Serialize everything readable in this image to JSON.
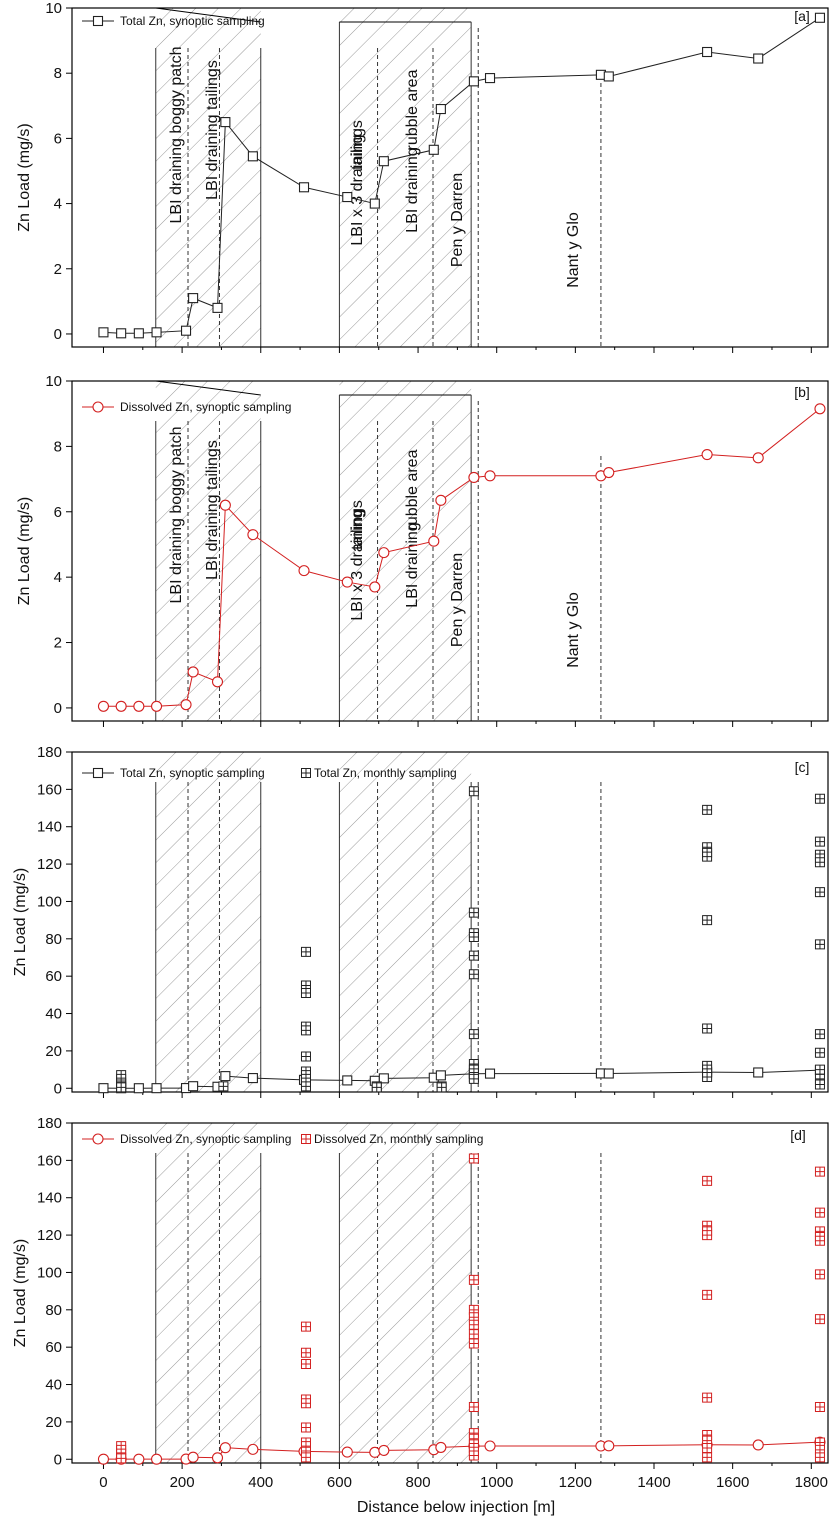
{
  "colors": {
    "total": "#222222",
    "dissolved": "#d32020",
    "hatch": "#9a9a9a",
    "axis": "#000000"
  },
  "xlabel": "Distance below injection [m]",
  "ylabel": "Zn Load (mg/s)",
  "xlim": [
    -80,
    1845
  ],
  "xticks": [
    0,
    200,
    400,
    600,
    800,
    1000,
    1200,
    1400,
    1600,
    1800
  ],
  "xtick_labels": [
    "0",
    "200",
    "400",
    "600",
    "800",
    "1000",
    "1200",
    "1400",
    "1600",
    "1800"
  ],
  "hatched_regions": [
    [
      133,
      400
    ],
    [
      600,
      935
    ]
  ],
  "solid_lines": [
    133,
    400,
    600,
    935
  ],
  "dashed_lines": [
    215,
    295,
    697,
    838,
    953,
    1265
  ],
  "region_labels": [
    "LBI draining boggy patch",
    "LBI draining tailings",
    "LBI x 3 draining",
    "tailings",
    "LBI draining",
    "rubble area",
    "Pen y Darren",
    "Nant y Glo"
  ],
  "chart_data": [
    {
      "type": "line",
      "panel": "[a]",
      "ylim": [
        -0.4,
        10
      ],
      "yticks": [
        0,
        2,
        4,
        6,
        8,
        10
      ],
      "ytick_labels": [
        "0",
        "2",
        "4",
        "6",
        "8",
        "10"
      ],
      "series": [
        {
          "name": "Total Zn, synoptic sampling",
          "marker": "square",
          "color": "#222222",
          "x": [
            0,
            45,
            90,
            135,
            210,
            228,
            290,
            310,
            380,
            510,
            620,
            690,
            713,
            840,
            858,
            942,
            983,
            1265,
            1285,
            1535,
            1665,
            1822
          ],
          "y": [
            0.05,
            0.02,
            0.02,
            0.05,
            0.1,
            1.1,
            0.8,
            6.5,
            5.45,
            4.5,
            4.2,
            4.0,
            5.3,
            5.65,
            6.9,
            7.75,
            7.85,
            7.95,
            7.9,
            8.65,
            8.45,
            9.7
          ]
        }
      ]
    },
    {
      "type": "line",
      "panel": "[b]",
      "ylim": [
        -0.4,
        10
      ],
      "yticks": [
        0,
        2,
        4,
        6,
        8,
        10
      ],
      "ytick_labels": [
        "0",
        "2",
        "4",
        "6",
        "8",
        "10"
      ],
      "series": [
        {
          "name": "Dissolved Zn, synoptic sampling",
          "marker": "circle",
          "color": "#d32020",
          "x": [
            0,
            45,
            90,
            135,
            210,
            228,
            290,
            310,
            380,
            510,
            620,
            690,
            713,
            840,
            858,
            942,
            983,
            1265,
            1285,
            1535,
            1665,
            1822
          ],
          "y": [
            0.05,
            0.05,
            0.05,
            0.05,
            0.1,
            1.1,
            0.8,
            6.2,
            5.3,
            4.2,
            3.85,
            3.7,
            4.75,
            5.1,
            6.35,
            7.05,
            7.1,
            7.1,
            7.2,
            7.75,
            7.65,
            9.15
          ]
        }
      ]
    },
    {
      "type": "scatter",
      "panel": "[c]",
      "ylim": [
        -2,
        180
      ],
      "yticks": [
        0,
        20,
        40,
        60,
        80,
        100,
        120,
        140,
        160,
        180
      ],
      "ytick_labels": [
        "0",
        "20",
        "40",
        "60",
        "80",
        "100",
        "120",
        "140",
        "160",
        "180"
      ],
      "series": [
        {
          "name": "Total Zn, synoptic sampling",
          "marker": "square",
          "color": "#222222",
          "line": true,
          "x": [
            0,
            45,
            90,
            135,
            210,
            228,
            290,
            310,
            380,
            510,
            620,
            690,
            713,
            840,
            858,
            942,
            983,
            1265,
            1285,
            1535,
            1665,
            1822
          ],
          "y": [
            0.05,
            0.02,
            0.02,
            0.05,
            0.1,
            1.1,
            0.8,
            6.5,
            5.45,
            4.5,
            4.2,
            4.0,
            5.3,
            5.65,
            6.9,
            7.75,
            7.85,
            7.95,
            7.9,
            8.65,
            8.45,
            9.7
          ]
        },
        {
          "name": "Total Zn, monthly sampling",
          "marker": "square-cross",
          "color": "#222222",
          "line": false,
          "x": [
            45,
            45,
            45,
            45,
            45,
            45,
            305,
            515,
            515,
            515,
            515,
            515,
            515,
            515,
            515,
            515,
            515,
            515,
            695,
            695,
            860,
            860,
            942,
            942,
            942,
            942,
            942,
            942,
            942,
            942,
            942,
            942,
            942,
            942,
            1535,
            1535,
            1535,
            1535,
            1535,
            1535,
            1535,
            1535,
            1535,
            1535,
            1822,
            1822,
            1822,
            1822,
            1822,
            1822,
            1822,
            1822,
            1822,
            1822,
            1822,
            1822
          ],
          "y": [
            7,
            5,
            3,
            2,
            1,
            0.5,
            1,
            73,
            55,
            51,
            33,
            31,
            17,
            9,
            7,
            5,
            3,
            1,
            1,
            0.5,
            1,
            0.5,
            159,
            94,
            83,
            81,
            71,
            61,
            29,
            13,
            10,
            8,
            6,
            5,
            149,
            129,
            126,
            124,
            90,
            32,
            12,
            10,
            8,
            6,
            155,
            132,
            125,
            123,
            121,
            105,
            77,
            29,
            19,
            10,
            5,
            2
          ]
        }
      ]
    },
    {
      "type": "scatter",
      "panel": "[d]",
      "ylim": [
        -2,
        180
      ],
      "yticks": [
        0,
        20,
        40,
        60,
        80,
        100,
        120,
        140,
        160,
        180
      ],
      "ytick_labels": [
        "0",
        "20",
        "40",
        "60",
        "80",
        "100",
        "120",
        "140",
        "160",
        "180"
      ],
      "series": [
        {
          "name": "Dissolved Zn, synoptic sampling",
          "marker": "circle",
          "color": "#d32020",
          "line": true,
          "x": [
            0,
            45,
            90,
            135,
            210,
            228,
            290,
            310,
            380,
            510,
            620,
            690,
            713,
            840,
            858,
            942,
            983,
            1265,
            1285,
            1535,
            1665,
            1822
          ],
          "y": [
            0.05,
            0.05,
            0.05,
            0.05,
            0.1,
            1.1,
            0.8,
            6.2,
            5.3,
            4.2,
            3.85,
            3.7,
            4.75,
            5.1,
            6.35,
            7.05,
            7.1,
            7.1,
            7.2,
            7.75,
            7.65,
            9.15
          ]
        },
        {
          "name": "Dissolved Zn, monthly sampling",
          "marker": "square-cross",
          "color": "#d32020",
          "line": false,
          "x": [
            45,
            45,
            45,
            45,
            45,
            515,
            515,
            515,
            515,
            515,
            515,
            515,
            515,
            515,
            515,
            515,
            942,
            942,
            942,
            942,
            942,
            942,
            942,
            942,
            942,
            942,
            942,
            942,
            942,
            942,
            1535,
            1535,
            1535,
            1535,
            1535,
            1535,
            1535,
            1535,
            1535,
            1535,
            1822,
            1822,
            1822,
            1822,
            1822,
            1822,
            1822,
            1822,
            1822,
            1822,
            1822
          ],
          "y": [
            7,
            5,
            3,
            1,
            0.5,
            71,
            57,
            51,
            32,
            30,
            17,
            9,
            7,
            4,
            2,
            1,
            161,
            96,
            80,
            76,
            72,
            67,
            62,
            28,
            14,
            11,
            8,
            6,
            4,
            2,
            149,
            125,
            122,
            120,
            88,
            33,
            13,
            10,
            6,
            1,
            154,
            132,
            122,
            119,
            117,
            99,
            75,
            28,
            9,
            5,
            1
          ]
        }
      ]
    }
  ]
}
